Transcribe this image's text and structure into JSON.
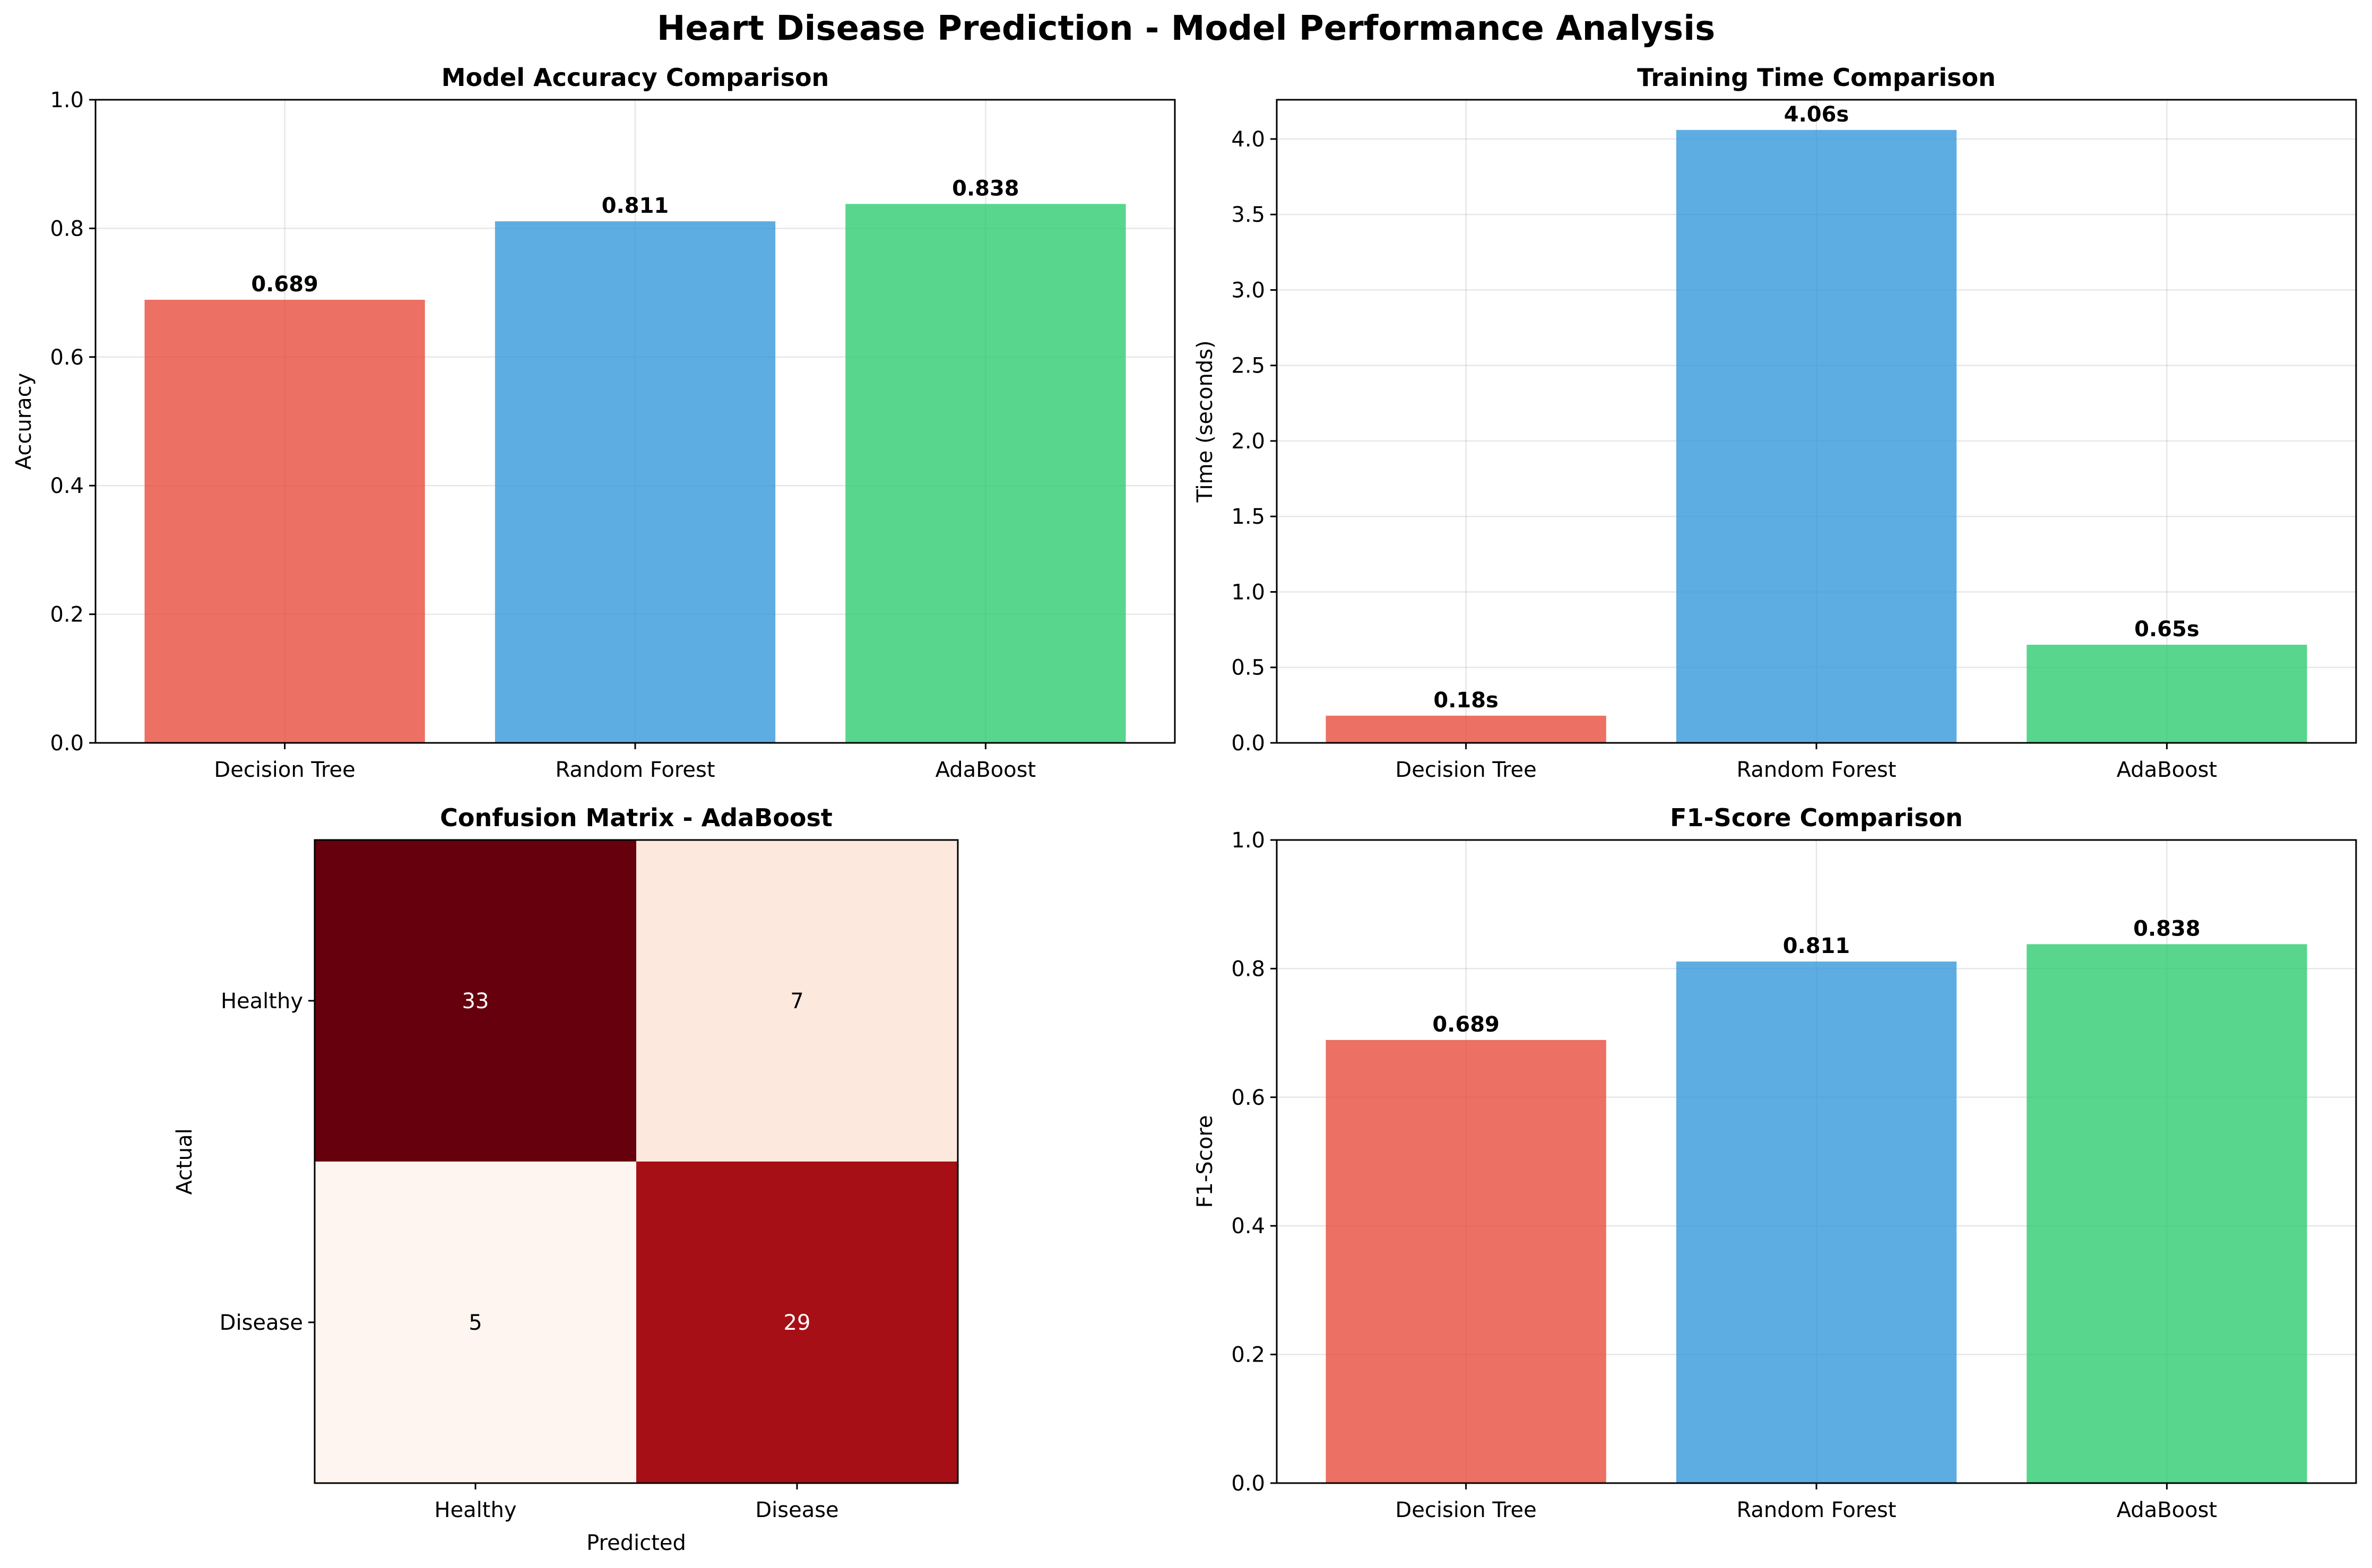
{
  "title": "Heart Disease Prediction - Model Performance Analysis",
  "chart_data": [
    {
      "type": "bar",
      "title": "Model Accuracy Comparison",
      "categories": [
        "Decision Tree",
        "Random Forest",
        "AdaBoost"
      ],
      "values": [
        0.689,
        0.811,
        0.838
      ],
      "value_labels": [
        "0.689",
        "0.811",
        "0.838"
      ],
      "colors": [
        "#e74c3c",
        "#3498db",
        "#2ecc71"
      ],
      "ylabel": "Accuracy",
      "xlabel": "",
      "ylim": [
        0,
        1.0
      ],
      "yticks": [
        0.0,
        0.2,
        0.4,
        0.6,
        0.8,
        1.0
      ],
      "ytick_labels": [
        "0.0",
        "0.2",
        "0.4",
        "0.6",
        "0.8",
        "1.0"
      ],
      "grid": true
    },
    {
      "type": "bar",
      "title": "Training Time Comparison",
      "categories": [
        "Decision Tree",
        "Random Forest",
        "AdaBoost"
      ],
      "values": [
        0.18,
        4.06,
        0.65
      ],
      "value_labels": [
        "0.18s",
        "4.06s",
        "0.65s"
      ],
      "colors": [
        "#e74c3c",
        "#3498db",
        "#2ecc71"
      ],
      "ylabel": "Time (seconds)",
      "xlabel": "",
      "ylim": [
        0,
        4.26
      ],
      "yticks": [
        0.0,
        0.5,
        1.0,
        1.5,
        2.0,
        2.5,
        3.0,
        3.5,
        4.0
      ],
      "ytick_labels": [
        "0.0",
        "0.5",
        "1.0",
        "1.5",
        "2.0",
        "2.5",
        "3.0",
        "3.5",
        "4.0"
      ],
      "grid": true
    },
    {
      "type": "heatmap",
      "title": "Confusion Matrix - AdaBoost",
      "xlabel": "Predicted",
      "ylabel": "Actual",
      "x_categories": [
        "Healthy",
        "Disease"
      ],
      "y_categories": [
        "Healthy",
        "Disease"
      ],
      "values": [
        [
          33,
          7
        ],
        [
          5,
          29
        ]
      ],
      "value_labels": [
        [
          "33",
          "7"
        ],
        [
          "5",
          "29"
        ]
      ],
      "cell_colors": [
        [
          "#67000d",
          "#fde8de"
        ],
        [
          "#fff5f0",
          "#a50f15"
        ]
      ],
      "colormap": "Reds",
      "grid": false
    },
    {
      "type": "bar",
      "title": "F1-Score Comparison",
      "categories": [
        "Decision Tree",
        "Random Forest",
        "AdaBoost"
      ],
      "values": [
        0.689,
        0.811,
        0.838
      ],
      "value_labels": [
        "0.689",
        "0.811",
        "0.838"
      ],
      "colors": [
        "#e74c3c",
        "#3498db",
        "#2ecc71"
      ],
      "ylabel": "F1-Score",
      "xlabel": "",
      "ylim": [
        0,
        1.0
      ],
      "yticks": [
        0.0,
        0.2,
        0.4,
        0.6,
        0.8,
        1.0
      ],
      "ytick_labels": [
        "0.0",
        "0.2",
        "0.4",
        "0.6",
        "0.8",
        "1.0"
      ],
      "grid": true
    }
  ]
}
